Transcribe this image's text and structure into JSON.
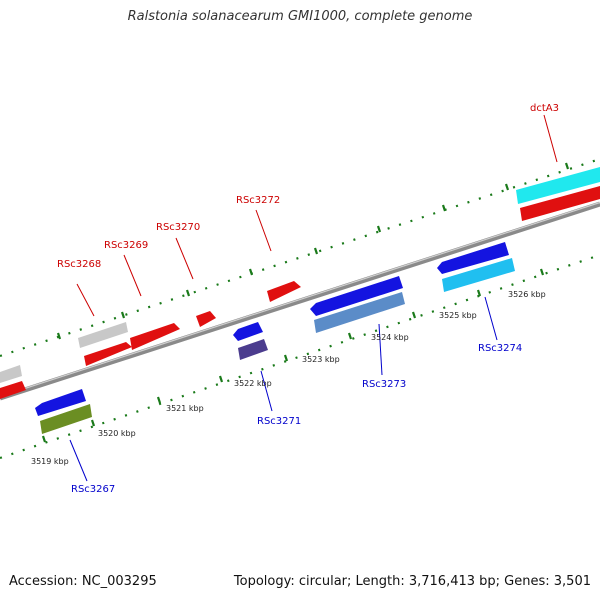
{
  "title": "Ralstonia solanacearum GMI1000, complete genome",
  "footer": {
    "accession": "Accession: NC_003295",
    "summary": "Topology: circular; Length: 3,716,413 bp; Genes: 3,501"
  },
  "colors": {
    "forward_label": "#cc0000",
    "reverse_label": "#0000cc",
    "backbone": "#8a8a8a",
    "ticks": "#1a7a1a"
  },
  "kbp_labels": [
    "3519 kbp",
    "3520 kbp",
    "3521 kbp",
    "3522 kbp",
    "3523 kbp",
    "3524 kbp",
    "3525 kbp",
    "3526 kbp"
  ],
  "forward_genes": [
    {
      "label": "RSc3268"
    },
    {
      "label": "RSc3269"
    },
    {
      "label": "RSc3270"
    },
    {
      "label": "RSc3272"
    },
    {
      "label": "dctA3"
    }
  ],
  "reverse_genes": [
    {
      "label": "RSc3267"
    },
    {
      "label": "RSc3271"
    },
    {
      "label": "RSc3273"
    },
    {
      "label": "RSc3274"
    }
  ]
}
